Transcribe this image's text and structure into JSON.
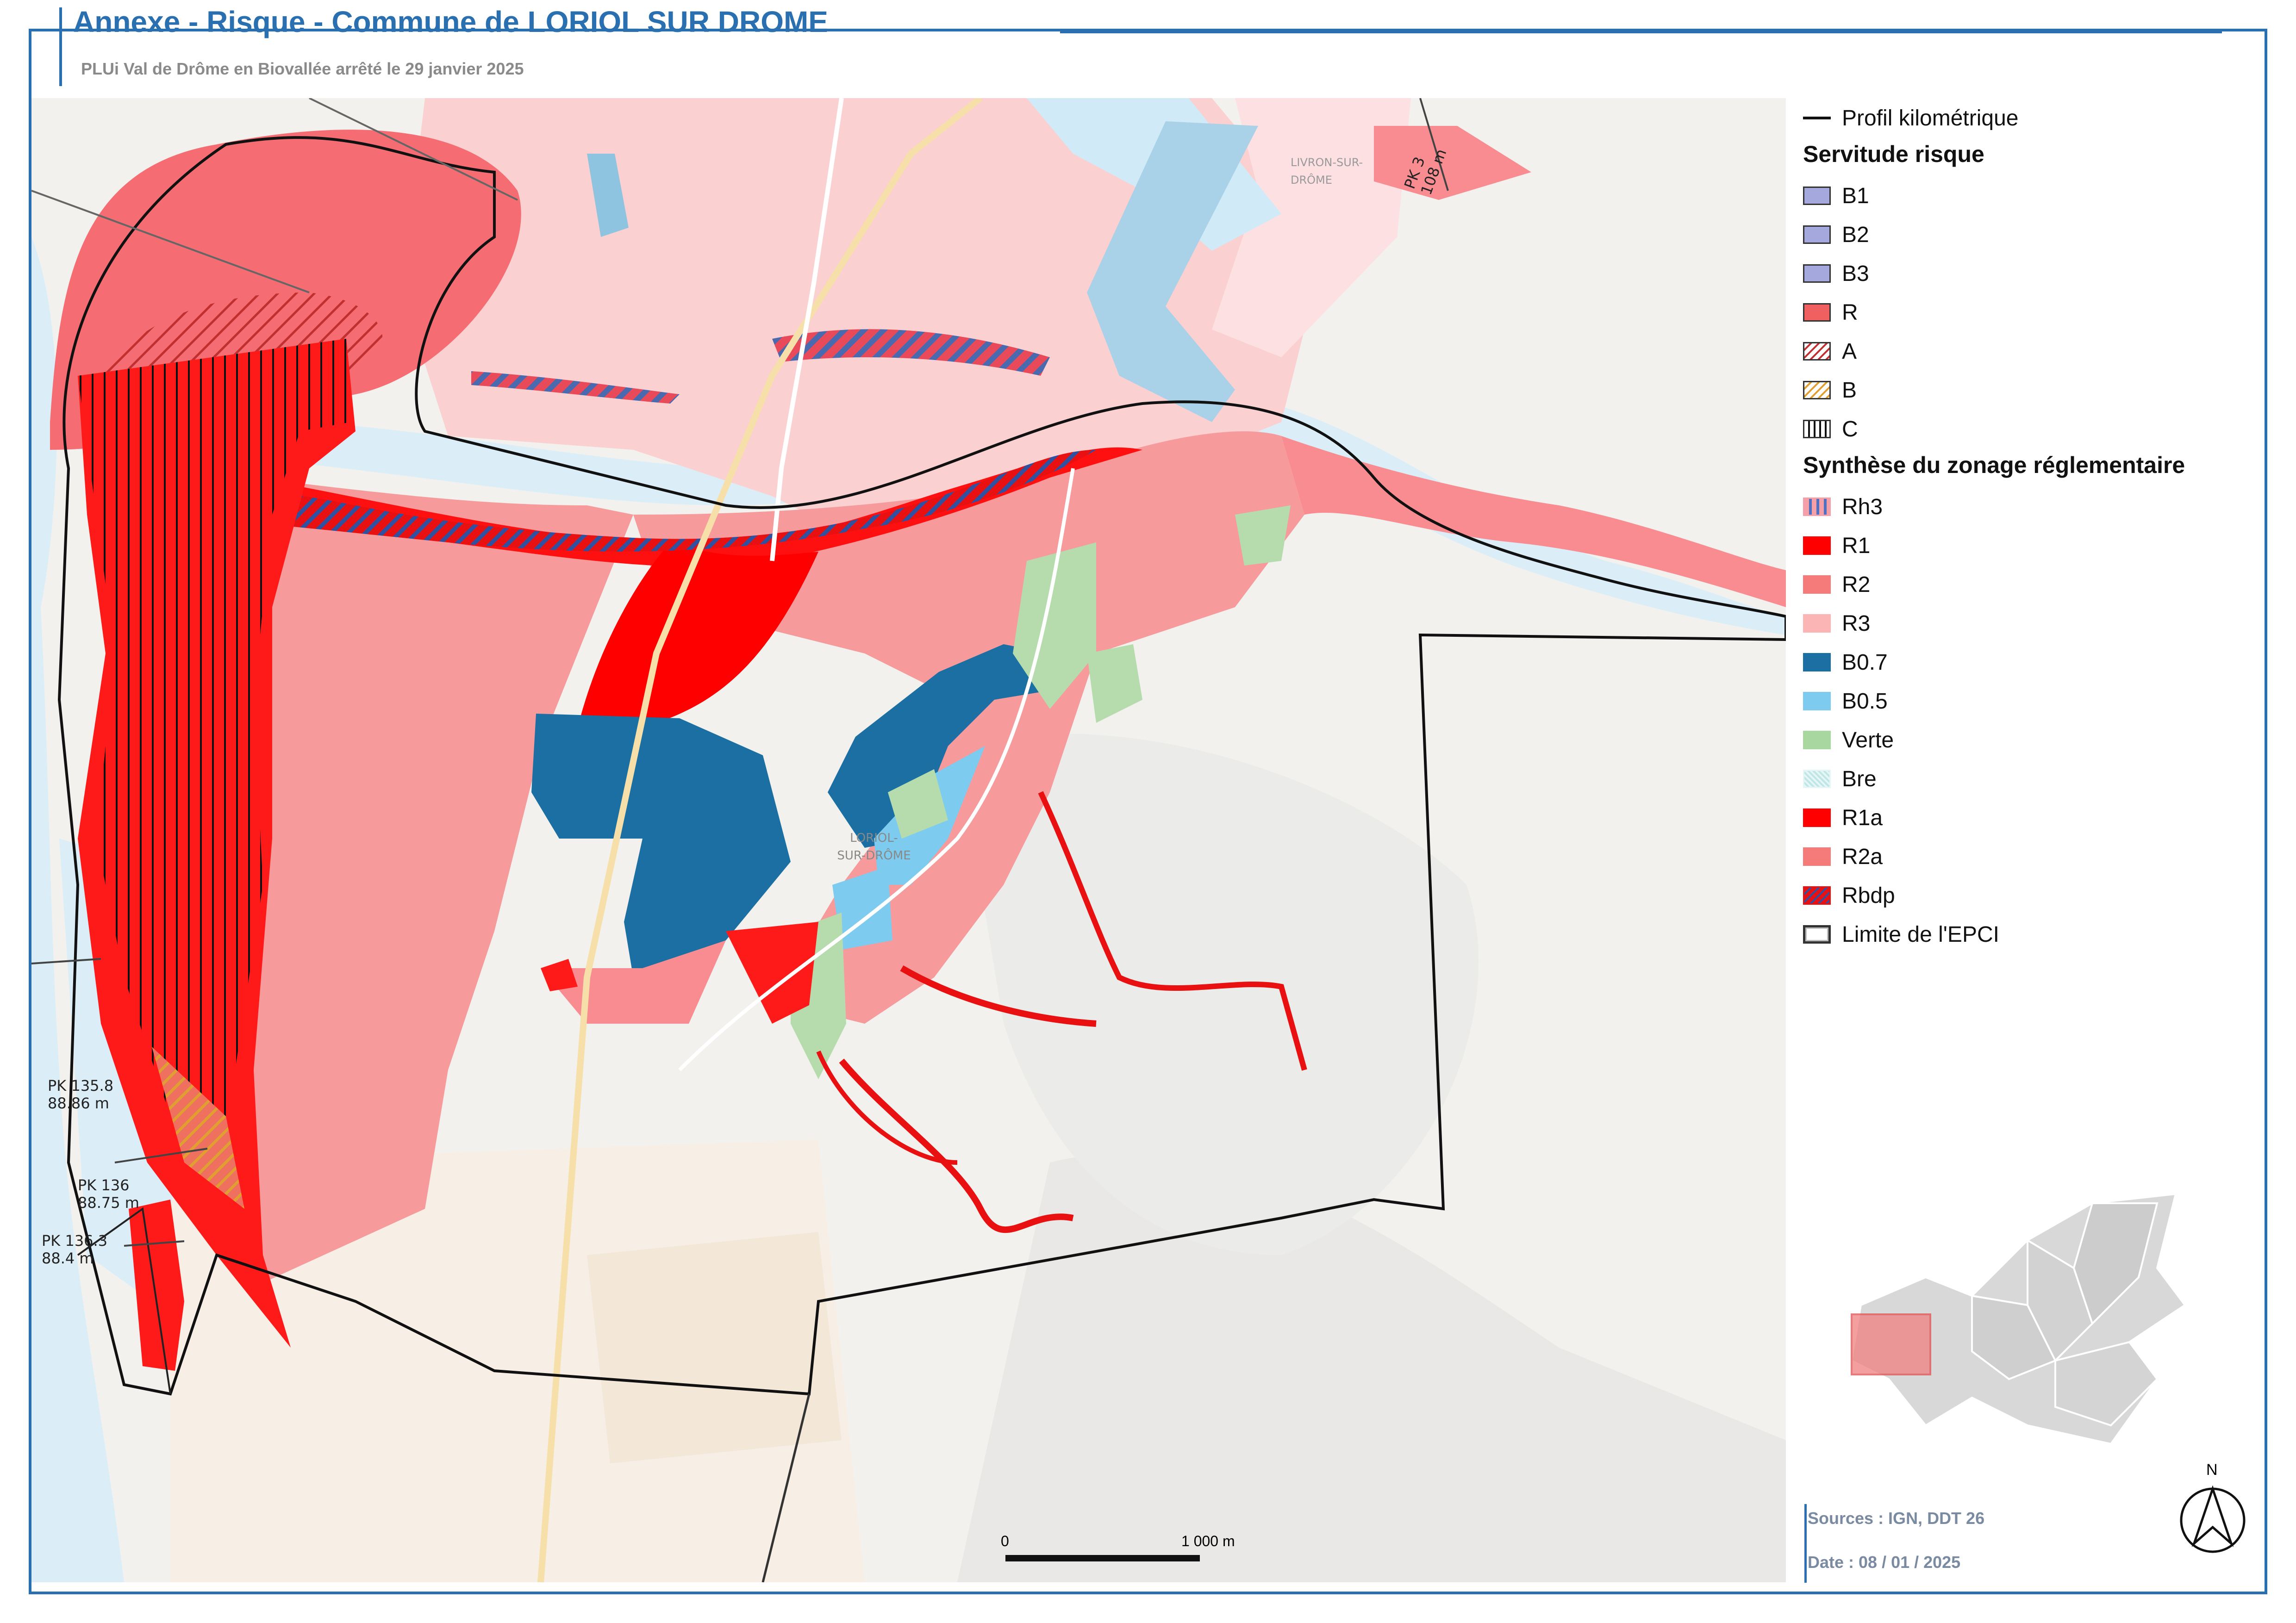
{
  "header": {
    "title": "Annexe - Risque - Commune de LORIOL SUR DROME",
    "subtitle": "PLUi Val de Drôme en Biovallée arrêté le 29 janvier 2025"
  },
  "legend": {
    "profil": "Profil kilométrique",
    "servitude_title": "Servitude risque",
    "servitude": [
      {
        "label": "B1",
        "color": "#a5a8dc"
      },
      {
        "label": "B2",
        "color": "#a5a8dc"
      },
      {
        "label": "B3",
        "color": "#a5a8dc"
      },
      {
        "label": "R",
        "color": "#f06060"
      },
      {
        "label": "A",
        "color": "#ffffff"
      },
      {
        "label": "B",
        "color": "#ffffff"
      },
      {
        "label": "C",
        "color": "#ffffff"
      }
    ],
    "synthese_title": "Synthèse du zonage réglementaire",
    "synthese": [
      {
        "label": "Rh3",
        "color": "#f5a0a8"
      },
      {
        "label": "R1",
        "color": "#ff0000"
      },
      {
        "label": "R2",
        "color": "#f57a7a"
      },
      {
        "label": "R3",
        "color": "#fbb5b5"
      },
      {
        "label": "B0.7",
        "color": "#1b6fa2"
      },
      {
        "label": "B0.5",
        "color": "#7dccf0"
      },
      {
        "label": "Verte",
        "color": "#a8d8a0"
      },
      {
        "label": "Bre",
        "color": "#e6f6f6"
      },
      {
        "label": "R1a",
        "color": "#ff0000"
      },
      {
        "label": "R2a",
        "color": "#f57a7a"
      },
      {
        "label": "Rbdp",
        "color": "#e81010"
      },
      {
        "label": "Limite de l'EPCI",
        "color": "#ffffff"
      }
    ]
  },
  "map_labels": {
    "town": "LORIOL-SUR-DRÔME",
    "livron": "LIVRON-SUR-DRÔME",
    "pk_labels": [
      {
        "name": "PK 3",
        "value": "108 m"
      },
      {
        "name": "PK 135.8",
        "value": "88.86 m"
      },
      {
        "name": "PK 136",
        "value": "88.75 m"
      },
      {
        "name": "PK 136.3",
        "value": "88.4 m"
      }
    ]
  },
  "scale": {
    "start": "0",
    "end": "1 000 m"
  },
  "compass": {
    "north": "N"
  },
  "footer": {
    "sources": "Sources : IGN, DDT 26",
    "date": "Date : 08 / 01 / 2025"
  }
}
